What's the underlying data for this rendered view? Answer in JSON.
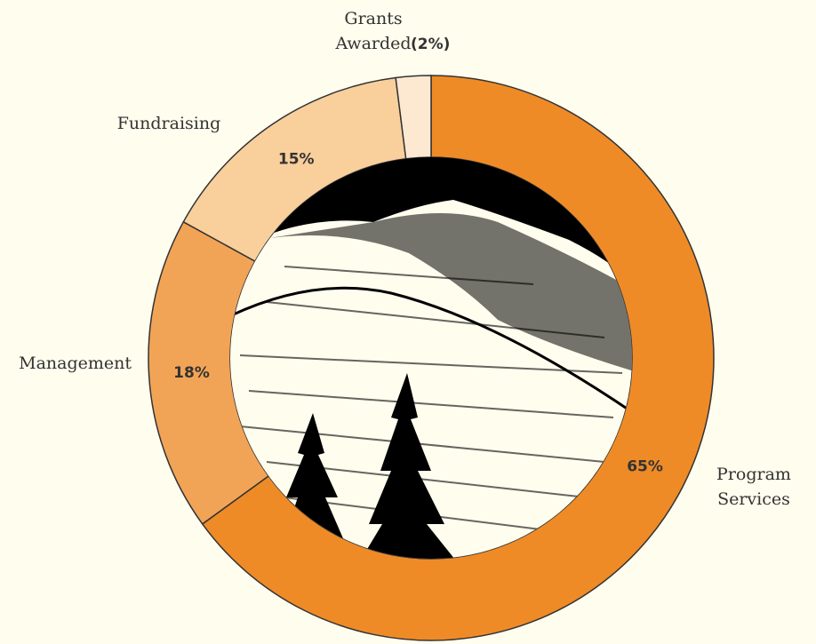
{
  "chart_data": {
    "type": "donut",
    "categories": [
      "Program Services",
      "Management",
      "Fundraising",
      "Grants Awarded"
    ],
    "values": [
      65,
      18,
      15,
      2
    ],
    "value_labels": [
      "65%",
      "18%",
      "15%",
      "(2%)"
    ],
    "colors": [
      "#ef8b27",
      "#f2a456",
      "#f9cf9c",
      "#fde9d1"
    ]
  }
}
